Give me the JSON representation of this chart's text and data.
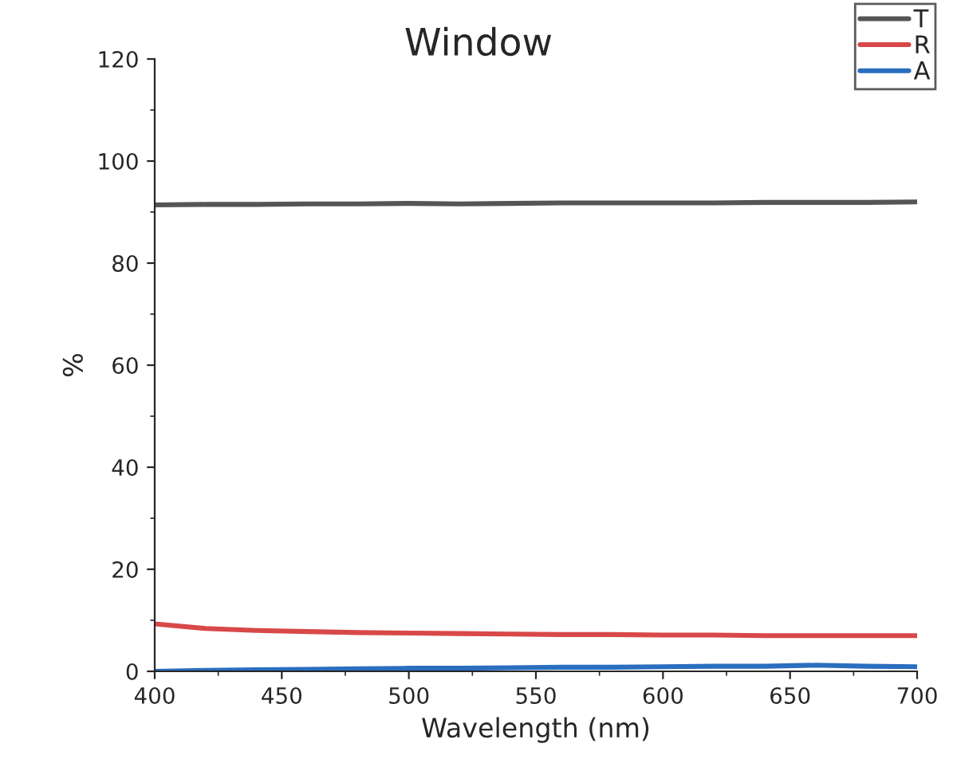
{
  "chart_data": {
    "type": "line",
    "title": "Window",
    "xlabel": "Wavelength (nm)",
    "ylabel": "%",
    "x": [
      400,
      420,
      440,
      460,
      480,
      500,
      520,
      540,
      560,
      580,
      600,
      620,
      640,
      660,
      680,
      700
    ],
    "series": [
      {
        "name": "T",
        "color": "#555555",
        "values": [
          91.4,
          91.5,
          91.5,
          91.6,
          91.6,
          91.7,
          91.6,
          91.7,
          91.8,
          91.8,
          91.8,
          91.8,
          91.9,
          91.9,
          91.9,
          92.0
        ]
      },
      {
        "name": "R",
        "color": "#d94848",
        "values": [
          9.3,
          8.4,
          8.0,
          7.8,
          7.6,
          7.5,
          7.4,
          7.3,
          7.2,
          7.2,
          7.1,
          7.1,
          7.0,
          7.0,
          7.0,
          7.0
        ]
      },
      {
        "name": "A",
        "color": "#2a6ebf",
        "values": [
          0.0,
          0.2,
          0.3,
          0.4,
          0.5,
          0.6,
          0.6,
          0.7,
          0.8,
          0.8,
          0.9,
          1.0,
          1.0,
          1.2,
          1.0,
          0.9
        ]
      }
    ],
    "xlim": [
      400,
      700
    ],
    "xticks": [
      400,
      450,
      500,
      550,
      600,
      650,
      700
    ],
    "ylim": [
      0,
      120
    ],
    "yticks": [
      0,
      20,
      40,
      60,
      80,
      100,
      120
    ],
    "grid": false,
    "legend": "top right",
    "marker": "none",
    "line_style": "solid"
  }
}
